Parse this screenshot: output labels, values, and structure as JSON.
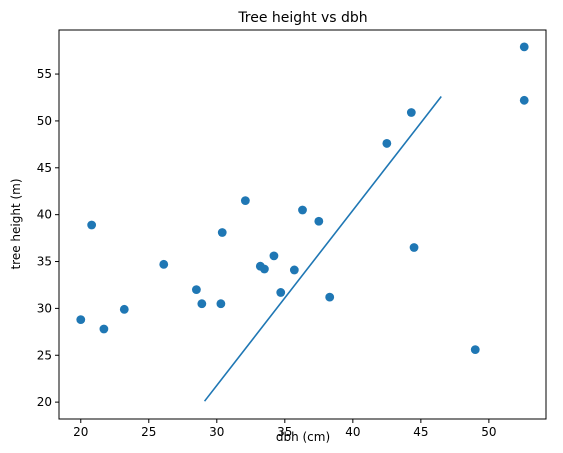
{
  "chart_data": {
    "type": "scatter",
    "title": "Tree height vs dbh",
    "xlabel": "dbh (cm)",
    "ylabel": "tree height (m)",
    "xlim": [
      18.4,
      54.2
    ],
    "ylim": [
      18.2,
      59.7
    ],
    "x_ticks": [
      20,
      25,
      30,
      35,
      40,
      45,
      50
    ],
    "y_ticks": [
      20,
      25,
      30,
      35,
      40,
      45,
      50,
      55
    ],
    "grid": false,
    "legend": "none",
    "colors": {
      "marker": "#1f77b4",
      "line": "#1f77b4",
      "axes": "#000000"
    },
    "points": [
      {
        "x": 20.0,
        "y": 28.8
      },
      {
        "x": 20.8,
        "y": 38.9
      },
      {
        "x": 21.7,
        "y": 27.8
      },
      {
        "x": 23.2,
        "y": 29.9
      },
      {
        "x": 26.1,
        "y": 34.7
      },
      {
        "x": 28.5,
        "y": 32.0
      },
      {
        "x": 28.9,
        "y": 30.5
      },
      {
        "x": 30.3,
        "y": 30.5
      },
      {
        "x": 30.4,
        "y": 38.1
      },
      {
        "x": 32.1,
        "y": 41.5
      },
      {
        "x": 33.2,
        "y": 34.5
      },
      {
        "x": 33.5,
        "y": 34.2
      },
      {
        "x": 34.2,
        "y": 35.6
      },
      {
        "x": 34.7,
        "y": 31.7
      },
      {
        "x": 35.7,
        "y": 34.1
      },
      {
        "x": 36.3,
        "y": 40.5
      },
      {
        "x": 37.5,
        "y": 39.3
      },
      {
        "x": 38.3,
        "y": 31.2
      },
      {
        "x": 42.5,
        "y": 47.6
      },
      {
        "x": 44.3,
        "y": 50.9
      },
      {
        "x": 44.5,
        "y": 36.5
      },
      {
        "x": 49.0,
        "y": 25.6
      },
      {
        "x": 52.6,
        "y": 57.9
      },
      {
        "x": 52.6,
        "y": 52.2
      }
    ],
    "line": [
      {
        "x": 29.1,
        "y": 20.1
      },
      {
        "x": 46.5,
        "y": 52.6
      }
    ]
  }
}
